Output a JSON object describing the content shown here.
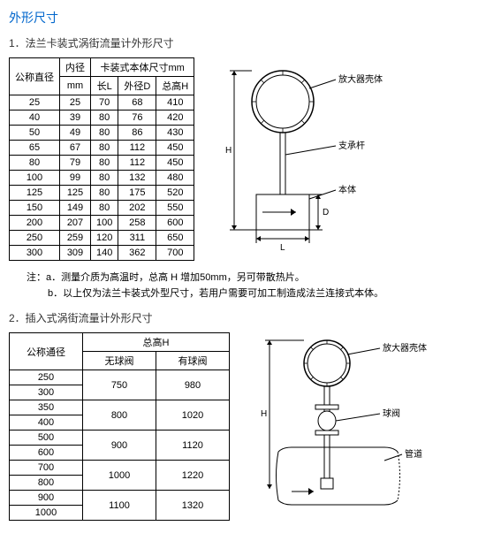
{
  "mainTitle": "外形尺寸",
  "section1": {
    "title": "1．法兰卡装式涡街流量计外形尺寸",
    "headers": {
      "col1": "公称直径",
      "col2": "内径",
      "col2unit": "mm",
      "groupHeader": "卡装式本体尺寸mm",
      "sub1": "长L",
      "sub2": "外径D",
      "sub3": "总高H"
    },
    "rows": [
      [
        "25",
        "25",
        "70",
        "68",
        "410"
      ],
      [
        "40",
        "39",
        "80",
        "76",
        "420"
      ],
      [
        "50",
        "49",
        "80",
        "86",
        "430"
      ],
      [
        "65",
        "67",
        "80",
        "112",
        "450"
      ],
      [
        "80",
        "79",
        "80",
        "112",
        "450"
      ],
      [
        "100",
        "99",
        "80",
        "132",
        "480"
      ],
      [
        "125",
        "125",
        "80",
        "175",
        "520"
      ],
      [
        "150",
        "149",
        "80",
        "202",
        "550"
      ],
      [
        "200",
        "207",
        "100",
        "258",
        "600"
      ],
      [
        "250",
        "259",
        "120",
        "311",
        "650"
      ],
      [
        "300",
        "309",
        "140",
        "362",
        "700"
      ]
    ],
    "note1": "注：a．测量介质为高温时，总高 H 增加50mm，另可带散热片。",
    "note2": "b．以上仅为法兰卡装式外型尺寸，若用户需要可加工制造成法兰连接式本体。",
    "diagram": {
      "label1": "放大器壳体",
      "label2": "支承杆",
      "label3": "本体",
      "dimH": "H",
      "dimL": "L",
      "dimD": "D"
    }
  },
  "section2": {
    "title": "2．插入式涡街流量计外形尺寸",
    "headers": {
      "col1": "公称通径",
      "groupHeader": "总高H",
      "sub1": "无球阀",
      "sub2": "有球阀"
    },
    "rows": [
      {
        "dn": "250",
        "h1": "750",
        "h2": "980",
        "span": 2
      },
      {
        "dn": "300"
      },
      {
        "dn": "350",
        "h1": "800",
        "h2": "1020",
        "span": 2
      },
      {
        "dn": "400"
      },
      {
        "dn": "500",
        "h1": "900",
        "h2": "1120",
        "span": 2
      },
      {
        "dn": "600"
      },
      {
        "dn": "700",
        "h1": "1000",
        "h2": "1220",
        "span": 2
      },
      {
        "dn": "800"
      },
      {
        "dn": "900",
        "h1": "1100",
        "h2": "1320",
        "span": 2
      },
      {
        "dn": "1000"
      }
    ],
    "diagram": {
      "label1": "放大器壳体",
      "label2": "球阀",
      "label3": "管道",
      "dimH": "H"
    }
  }
}
